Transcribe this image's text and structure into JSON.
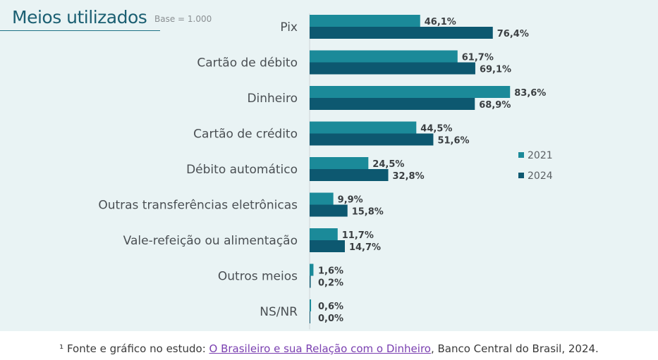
{
  "header": {
    "title": "Meios utilizados",
    "base_note": "Base = 1.000"
  },
  "chart_data": {
    "type": "bar",
    "orientation": "horizontal",
    "categories": [
      "Pix",
      "Cartão de débito",
      "Dinheiro",
      "Cartão de crédito",
      "Débito automático",
      "Outras transferências eletrônicas",
      "Vale-refeição ou alimentação",
      "Outros meios",
      "NS/NR"
    ],
    "series": [
      {
        "name": "2021",
        "color": "#1b8a99",
        "values": [
          46.1,
          61.7,
          83.6,
          44.5,
          24.5,
          9.9,
          11.7,
          1.6,
          0.6
        ],
        "labels": [
          "46,1%",
          "61,7%",
          "83,6%",
          "44,5%",
          "24,5%",
          "9,9%",
          "11,7%",
          "1,6%",
          "0,6%"
        ]
      },
      {
        "name": "2024",
        "color": "#0d5870",
        "values": [
          76.4,
          69.1,
          68.9,
          51.6,
          32.8,
          15.8,
          14.7,
          0.2,
          0.0
        ],
        "labels": [
          "76,4%",
          "69,1%",
          "68,9%",
          "51,6%",
          "32,8%",
          "15,8%",
          "14,7%",
          "0,2%",
          "0,0%"
        ]
      }
    ],
    "xlim": [
      0,
      100
    ],
    "grid": false,
    "legend_position": "right"
  },
  "footnote": {
    "prefix": "¹ Fonte e gráfico no estudo: ",
    "link_text": "O Brasileiro e sua Relação com o Dinheiro",
    "suffix": ", Banco Central do Brasil, 2024."
  }
}
